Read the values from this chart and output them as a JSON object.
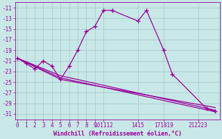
{
  "background_color": "#c8e8e8",
  "grid_color": "#aacccc",
  "line_color": "#990099",
  "xlabel": "Windchill (Refroidissement éolien,°C)",
  "yticks": [
    -11,
    -13,
    -15,
    -17,
    -19,
    -21,
    -23,
    -25,
    -27,
    -29,
    -31
  ],
  "ylim": [
    -32.0,
    -10.0
  ],
  "xlim": [
    -0.3,
    23.5
  ],
  "main_x": [
    0,
    1,
    2,
    3,
    4,
    5,
    6,
    7,
    8,
    9,
    10,
    11,
    14,
    15,
    17,
    18,
    22,
    23
  ],
  "main_y": [
    -20.5,
    -21.5,
    -22.5,
    -21.0,
    -22.0,
    -24.5,
    -22.0,
    -19.0,
    -15.5,
    -14.5,
    -11.5,
    -11.5,
    -13.5,
    -11.5,
    -19.0,
    -23.5,
    -30.0,
    -30.5
  ],
  "line2_x": [
    0,
    5,
    23
  ],
  "line2_y": [
    -20.5,
    -23.8,
    -30.3
  ],
  "line3_x": [
    0,
    5,
    23
  ],
  "line3_y": [
    -20.5,
    -24.2,
    -30.6
  ],
  "line4_x": [
    0,
    5,
    23
  ],
  "line4_y": [
    -20.5,
    -24.5,
    -29.8
  ],
  "xtick_positions": [
    0,
    1,
    2,
    3,
    4,
    5,
    6,
    7,
    8,
    9,
    10,
    14,
    17,
    21
  ],
  "xtick_labels": [
    "0",
    "1",
    "2",
    "3",
    "4",
    "5",
    "6",
    "7",
    "8",
    "9",
    "101112",
    "1415",
    "171819",
    "212223"
  ],
  "tick_fontsize": 5.5,
  "xlabel_fontsize": 6.0
}
